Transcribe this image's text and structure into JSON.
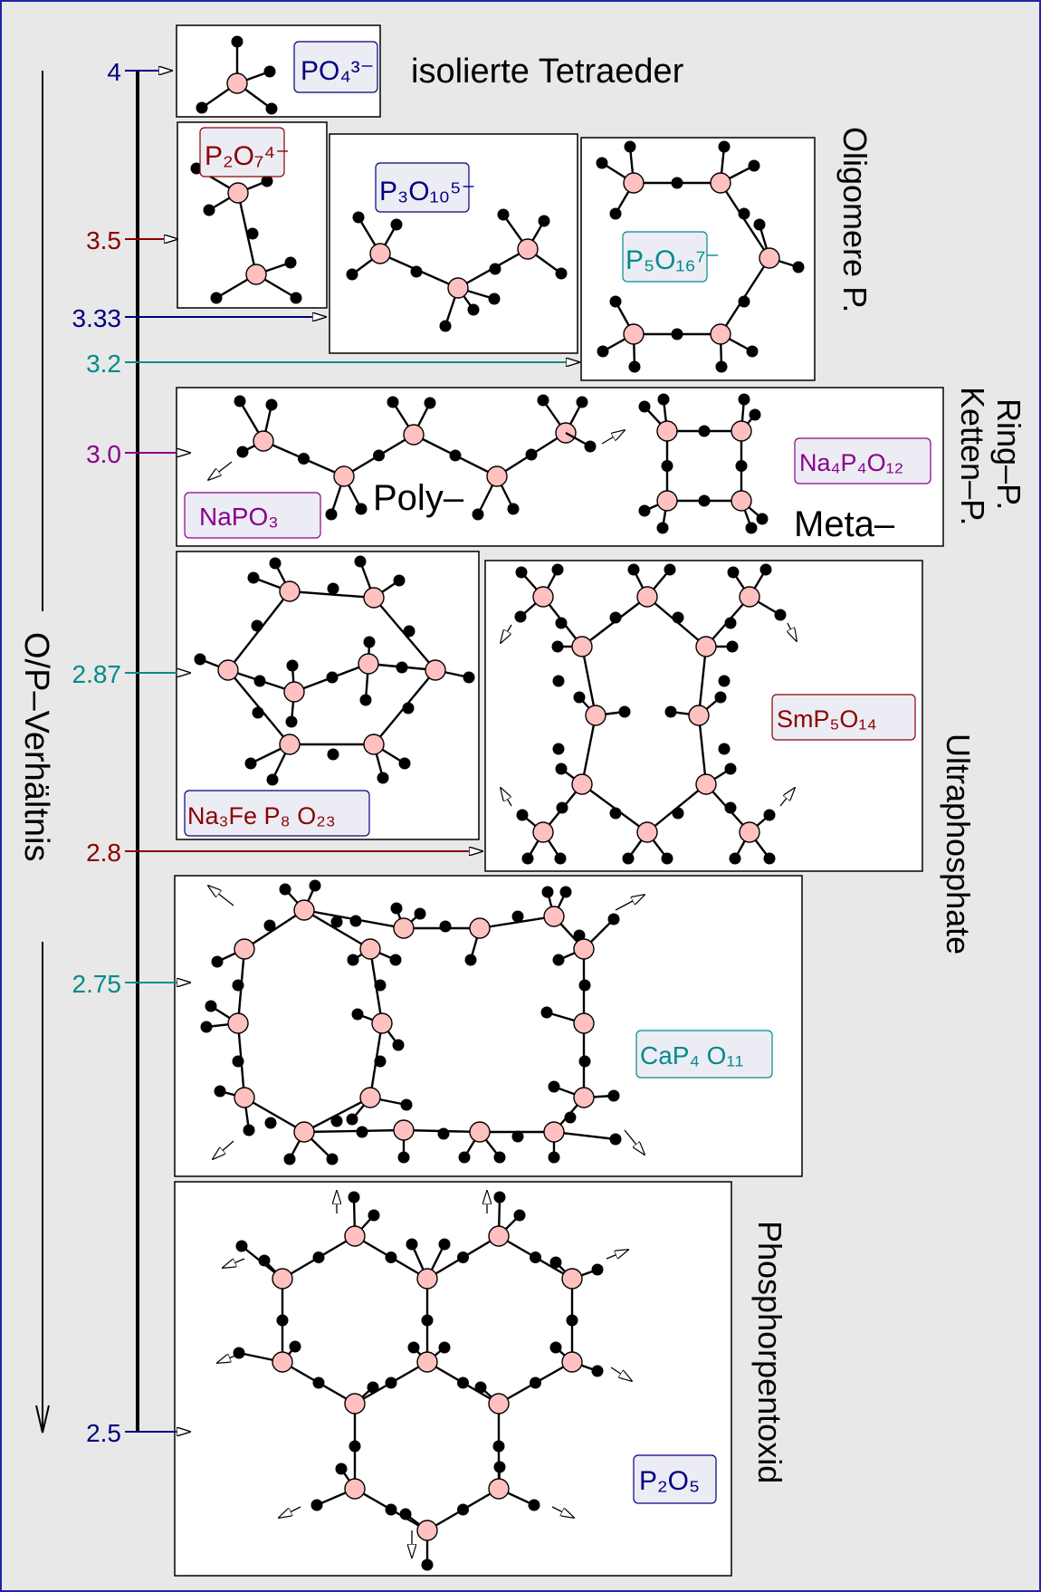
{
  "axis": {
    "label": "O/P–Verhältnis",
    "ticks": [
      {
        "value": "4",
        "color": "#000080"
      },
      {
        "value": "3.5",
        "color": "#8b0000"
      },
      {
        "value": "3.33",
        "color": "#000080"
      },
      {
        "value": "3.2",
        "color": "#008b8b"
      },
      {
        "value": "3.0",
        "color": "#8b008b"
      },
      {
        "value": "2.87",
        "color": "#008b8b"
      },
      {
        "value": "2.8",
        "color": "#8b0000"
      },
      {
        "value": "2.75",
        "color": "#008b8b"
      },
      {
        "value": "2.5",
        "color": "#000080"
      }
    ]
  },
  "formulas": [
    {
      "id": "po4",
      "text": "PO₄³⁻",
      "color": "#000080"
    },
    {
      "id": "p2o7",
      "text": "P₂O₇⁴⁻",
      "color": "#8b0000"
    },
    {
      "id": "p3o10",
      "text": "P₃O₁₀⁵⁻",
      "color": "#000080"
    },
    {
      "id": "p5o16",
      "text": "P₅O₁₆⁷⁻",
      "color": "#008b8b"
    },
    {
      "id": "napo3",
      "text": "NaPO₃",
      "color": "#8b008b"
    },
    {
      "id": "na4p4o12",
      "text": "Na₄P₄O₁₂",
      "color": "#8b008b"
    },
    {
      "id": "na3fe",
      "text": "Na₃Fe P₈ O₂₃",
      "color": "#8b0000"
    },
    {
      "id": "smp5",
      "text": "SmP₅O₁₄",
      "color": "#8b0000"
    },
    {
      "id": "cap4",
      "text": "CaP₄ O₁₁",
      "color": "#008b8b"
    },
    {
      "id": "p2o5",
      "text": "P₂O₅",
      "color": "#000080"
    }
  ],
  "labels": {
    "isolated": "isolierte Tetraeder",
    "oligomere": "Oligomere P.",
    "ring": "Ring–P.",
    "ketten": "Ketten–P.",
    "poly": "Poly–",
    "meta": "Meta–",
    "ultra": "Ultraphosphate",
    "pento": "Phosphorpentoxid"
  },
  "colors": {
    "background": "#e8e8e8",
    "phosphorus": "#ffc0c0",
    "oxygen": "#000000",
    "formula_bg": "#ececf4"
  }
}
